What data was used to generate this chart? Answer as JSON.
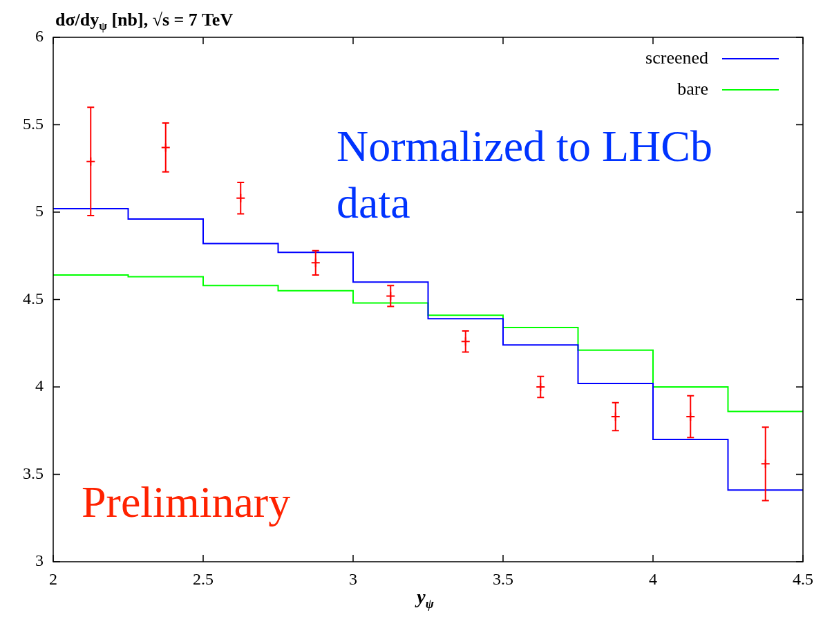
{
  "chart_data": {
    "type": "histogram",
    "title": "dσ/dy$_{ψ}$ [nb], √s = 7 TeV",
    "xlabel": "y$_{ψ}$",
    "bins": [
      2,
      2.25,
      2.5,
      2.75,
      3,
      3.25,
      3.5,
      3.75,
      4,
      4.25,
      4.5
    ],
    "series": [
      {
        "name": "screened",
        "color": "#0000ff",
        "values": [
          5.02,
          4.96,
          4.82,
          4.77,
          4.6,
          4.39,
          4.24,
          4.02,
          3.7,
          3.41
        ]
      },
      {
        "name": "bare",
        "color": "#00ff00",
        "values": [
          4.64,
          4.63,
          4.58,
          4.55,
          4.48,
          4.41,
          4.34,
          4.21,
          4.0,
          3.86
        ]
      },
      {
        "type": "scatter",
        "color": "#ff0000",
        "x": [
          2.125,
          2.375,
          2.625,
          2.875,
          3.125,
          3.375,
          3.625,
          3.875,
          4.125,
          4.375
        ],
        "values": [
          5.29,
          5.37,
          5.08,
          4.71,
          4.52,
          4.26,
          4.0,
          3.83,
          3.83,
          3.56
        ],
        "errors": [
          0.31,
          0.14,
          0.09,
          0.07,
          0.06,
          0.06,
          0.06,
          0.08,
          0.12,
          0.21
        ]
      }
    ],
    "xlim": [
      2,
      4.5
    ],
    "xticks": [
      2,
      2.5,
      3,
      3.5,
      4,
      4.5
    ],
    "ylim": [
      3,
      6
    ],
    "yticks": [
      3,
      3.5,
      4,
      4.5,
      5,
      5.5,
      6
    ],
    "marker": "cross",
    "legend": "top right",
    "grid": false,
    "annotations": [
      "Normalized to LHCb data",
      "Preliminary"
    ]
  }
}
